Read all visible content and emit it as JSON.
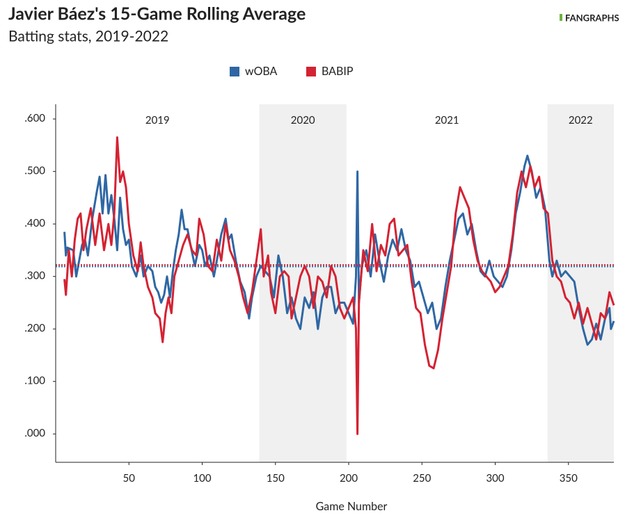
{
  "chart_data": {
    "type": "line",
    "title": "Javier Báez's 15-Game Rolling Average",
    "subtitle": "Batting stats, 2019-2022",
    "logo": "FANGRAPHS",
    "x_label": "Game Number",
    "xlim": [
      0,
      381
    ],
    "xticks": [
      50,
      100,
      150,
      200,
      250,
      300,
      350
    ],
    "ylim": [
      -0.054,
      0.628
    ],
    "yticks": [
      {
        "value": 0,
        "label": ".000"
      },
      {
        "value": 0.1,
        "label": ".100"
      },
      {
        "value": 0.2,
        "label": ".200"
      },
      {
        "value": 0.3,
        "label": ".300"
      },
      {
        "value": 0.4,
        "label": ".400"
      },
      {
        "value": 0.5,
        "label": ".500"
      },
      {
        "value": 0.6,
        "label": ".600"
      }
    ],
    "eras": [
      {
        "label": "2019",
        "range": [
          0,
          139
        ],
        "shaded": false
      },
      {
        "label": "2020",
        "range": [
          139,
          198.5
        ],
        "shaded": true
      },
      {
        "label": "2021",
        "range": [
          198.5,
          335.7
        ],
        "shaded": false
      },
      {
        "label": "2022",
        "range": [
          335.7,
          381
        ],
        "shaded": true
      }
    ],
    "shade_color": "#f0f0f0",
    "series": [
      {
        "name": "wOBA",
        "color": "#2f67a4",
        "average": 0.319,
        "x": [
          6,
          7,
          8,
          12,
          14,
          18,
          20,
          22,
          25,
          28,
          30,
          32,
          34,
          36,
          38,
          40,
          42,
          44,
          46,
          48,
          50,
          52,
          55,
          58,
          60,
          63,
          66,
          68,
          70,
          72,
          74,
          76,
          78,
          80,
          82,
          84,
          86,
          88,
          90,
          92,
          95,
          98,
          100,
          102,
          105,
          108,
          110,
          113,
          116,
          118,
          120,
          123,
          126,
          129,
          132,
          134,
          137,
          140,
          143,
          146,
          149,
          152,
          155,
          158,
          161,
          164,
          167,
          170,
          173,
          176,
          179,
          182,
          185,
          188,
          191,
          194,
          197,
          200,
          203,
          205,
          206,
          207,
          209,
          212,
          215,
          218,
          221,
          224,
          227,
          230,
          233,
          236,
          239,
          242,
          245,
          248,
          251,
          254,
          257,
          260,
          263,
          266,
          269,
          272,
          275,
          278,
          281,
          284,
          287,
          290,
          293,
          296,
          299,
          302,
          305,
          308,
          311,
          314,
          317,
          320,
          322,
          325,
          328,
          331,
          334,
          337,
          339,
          342,
          345,
          348,
          351,
          354,
          357,
          360,
          363,
          366,
          369,
          372,
          375,
          378,
          379,
          381
        ],
        "values": [
          0.385,
          0.34,
          0.355,
          0.35,
          0.3,
          0.36,
          0.37,
          0.34,
          0.41,
          0.46,
          0.49,
          0.42,
          0.493,
          0.42,
          0.455,
          0.41,
          0.35,
          0.45,
          0.39,
          0.36,
          0.37,
          0.32,
          0.3,
          0.34,
          0.3,
          0.32,
          0.31,
          0.28,
          0.27,
          0.25,
          0.265,
          0.3,
          0.26,
          0.31,
          0.35,
          0.38,
          0.427,
          0.39,
          0.39,
          0.36,
          0.32,
          0.36,
          0.35,
          0.32,
          0.34,
          0.3,
          0.33,
          0.38,
          0.41,
          0.37,
          0.38,
          0.33,
          0.29,
          0.27,
          0.22,
          0.26,
          0.3,
          0.32,
          0.31,
          0.3,
          0.26,
          0.34,
          0.3,
          0.23,
          0.26,
          0.22,
          0.2,
          0.26,
          0.24,
          0.27,
          0.2,
          0.26,
          0.28,
          0.28,
          0.23,
          0.25,
          0.25,
          0.23,
          0.21,
          0.3,
          0.5,
          0.25,
          0.32,
          0.35,
          0.3,
          0.38,
          0.33,
          0.29,
          0.34,
          0.37,
          0.35,
          0.39,
          0.35,
          0.33,
          0.28,
          0.29,
          0.26,
          0.23,
          0.25,
          0.2,
          0.22,
          0.28,
          0.33,
          0.37,
          0.41,
          0.42,
          0.38,
          0.4,
          0.35,
          0.31,
          0.3,
          0.33,
          0.3,
          0.29,
          0.28,
          0.3,
          0.35,
          0.42,
          0.46,
          0.51,
          0.53,
          0.5,
          0.45,
          0.47,
          0.43,
          0.33,
          0.3,
          0.33,
          0.3,
          0.31,
          0.3,
          0.29,
          0.24,
          0.2,
          0.17,
          0.18,
          0.21,
          0.18,
          0.22,
          0.24,
          0.2,
          0.215
        ]
      },
      {
        "name": "BABIP",
        "color": "#d42232",
        "average": 0.322,
        "x": [
          6,
          7,
          9,
          11,
          13,
          15,
          17,
          19,
          21,
          24,
          27,
          30,
          33,
          36,
          38,
          40,
          42,
          44,
          46,
          48,
          50,
          53,
          56,
          58,
          60,
          63,
          66,
          68,
          71,
          73,
          75,
          77,
          79,
          81,
          84,
          87,
          90,
          93,
          96,
          98,
          101,
          104,
          107,
          110,
          113,
          116,
          119,
          122,
          125,
          128,
          131,
          134,
          137,
          140,
          142,
          145,
          147,
          150,
          153,
          156,
          159,
          161,
          164,
          167,
          170,
          173,
          176,
          179,
          182,
          185,
          188,
          191,
          194,
          197,
          200,
          203,
          205,
          206,
          207,
          210,
          213,
          216,
          219,
          222,
          225,
          228,
          231,
          234,
          237,
          240,
          243,
          246,
          249,
          252,
          255,
          258,
          261,
          264,
          267,
          270,
          273,
          276,
          279,
          282,
          285,
          288,
          291,
          294,
          297,
          300,
          303,
          306,
          309,
          312,
          315,
          318,
          321,
          324,
          327,
          330,
          333,
          336,
          339,
          342,
          345,
          348,
          351,
          354,
          357,
          360,
          363,
          366,
          369,
          372,
          375,
          378,
          381
        ],
        "values": [
          0.295,
          0.265,
          0.35,
          0.3,
          0.37,
          0.41,
          0.42,
          0.35,
          0.39,
          0.43,
          0.36,
          0.42,
          0.35,
          0.4,
          0.36,
          0.42,
          0.565,
          0.48,
          0.5,
          0.47,
          0.4,
          0.34,
          0.31,
          0.365,
          0.32,
          0.28,
          0.26,
          0.23,
          0.22,
          0.175,
          0.23,
          0.26,
          0.23,
          0.3,
          0.33,
          0.36,
          0.38,
          0.35,
          0.34,
          0.41,
          0.38,
          0.32,
          0.31,
          0.37,
          0.33,
          0.4,
          0.35,
          0.33,
          0.3,
          0.26,
          0.23,
          0.27,
          0.33,
          0.39,
          0.3,
          0.34,
          0.27,
          0.23,
          0.3,
          0.31,
          0.3,
          0.22,
          0.26,
          0.3,
          0.32,
          0.3,
          0.24,
          0.3,
          0.29,
          0.26,
          0.32,
          0.3,
          0.24,
          0.22,
          0.24,
          0.26,
          0.2,
          0,
          0.25,
          0.35,
          0.31,
          0.4,
          0.31,
          0.36,
          0.34,
          0.4,
          0.41,
          0.34,
          0.35,
          0.36,
          0.29,
          0.24,
          0.23,
          0.17,
          0.13,
          0.125,
          0.16,
          0.22,
          0.27,
          0.32,
          0.42,
          0.47,
          0.45,
          0.43,
          0.37,
          0.33,
          0.31,
          0.3,
          0.29,
          0.27,
          0.28,
          0.3,
          0.32,
          0.38,
          0.46,
          0.5,
          0.47,
          0.51,
          0.47,
          0.49,
          0.43,
          0.42,
          0.33,
          0.3,
          0.29,
          0.26,
          0.25,
          0.22,
          0.25,
          0.21,
          0.24,
          0.21,
          0.18,
          0.23,
          0.22,
          0.27,
          0.245
        ]
      }
    ]
  }
}
